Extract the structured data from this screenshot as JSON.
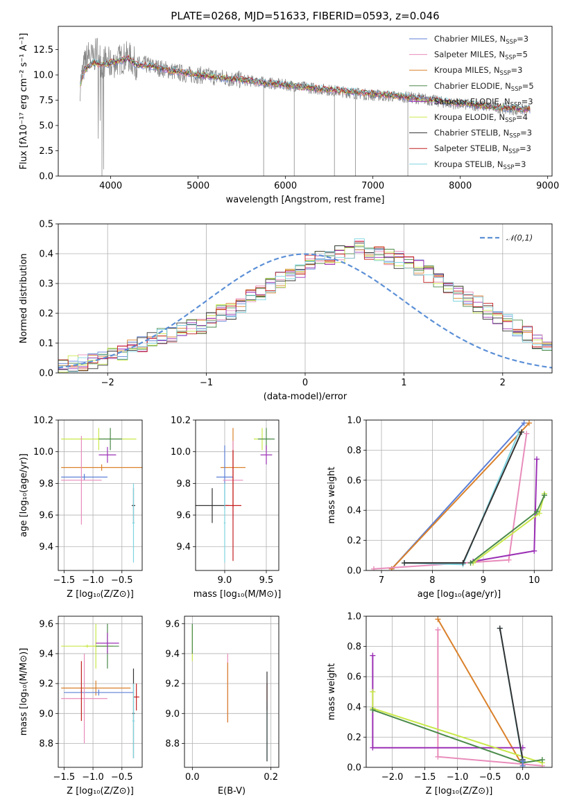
{
  "chart_data": [
    {
      "id": "spectrum",
      "type": "line",
      "title": "PLATE=0268, MJD=51633, FIBERID=0593, z=0.046",
      "xlabel": "wavelength [Angstrom, rest frame]",
      "ylabel": "Flux [fλ10⁻¹⁷ erg cm⁻² s⁻¹ A⁻¹]",
      "xlim": [
        3400,
        9050
      ],
      "ylim": [
        0,
        14.8
      ],
      "xticks": [
        4000,
        5000,
        6000,
        7000,
        8000,
        9000
      ],
      "yticks": [
        0.0,
        2.5,
        5.0,
        7.5,
        10.0,
        12.5
      ],
      "legend_position": "top-right",
      "data_trace": {
        "color": "#808080",
        "x": [
          3650,
          3700,
          3750,
          3800,
          3850,
          3900,
          3950,
          4000,
          4100,
          4200,
          4300,
          4400,
          4500,
          4600,
          4700,
          4800,
          4900,
          5000,
          5200,
          5400,
          5600,
          5800,
          6000,
          6200,
          6400,
          6600,
          6800,
          7000,
          7200,
          7400,
          7600,
          7800,
          8000,
          8200,
          8400,
          8600,
          8800
        ],
        "y": [
          9.0,
          11.0,
          12.0,
          11.5,
          12.5,
          11.0,
          11.5,
          11.0,
          11.5,
          11.8,
          11.0,
          11.0,
          10.8,
          10.6,
          10.4,
          10.2,
          10.0,
          10.0,
          9.8,
          9.6,
          9.4,
          9.2,
          9.0,
          8.8,
          8.6,
          8.4,
          8.2,
          8.0,
          7.9,
          7.8,
          7.6,
          7.3,
          7.1,
          7.0,
          6.8,
          6.6,
          6.5
        ]
      },
      "series": [
        {
          "name": "Chabrier MILES, N",
          "sub": "SSP",
          "suffix": "=3",
          "color": "#5b7fd6"
        },
        {
          "name": "Salpeter MILES, N",
          "sub": "SSP",
          "suffix": "=5",
          "color": "#e88cba"
        },
        {
          "name": "Kroupa MILES, N",
          "sub": "SSP",
          "suffix": "=3",
          "color": "#d9802a"
        },
        {
          "name": "Chabrier ELODIE, N",
          "sub": "SSP",
          "suffix": "=5",
          "color": "#4a8a4a"
        },
        {
          "name": "Salpeter ELODIE, N",
          "sub": "SSP",
          "suffix": "=3",
          "color": "#9b30b5"
        },
        {
          "name": "Kroupa ELODIE, N",
          "sub": "SSP",
          "suffix": "=4",
          "color": "#c8e84a"
        },
        {
          "name": "Chabrier STELIB, N",
          "sub": "SSP",
          "suffix": "=3",
          "color": "#333333"
        },
        {
          "name": "Salpeter STELIB, N",
          "sub": "SSP",
          "suffix": "=3",
          "color": "#c41e1e"
        },
        {
          "name": "Kroupa STELIB, N",
          "sub": "SSP",
          "suffix": "=3",
          "color": "#7fd4e0"
        }
      ],
      "model_trace": {
        "x": [
          3650,
          3700,
          3800,
          3900,
          4000,
          4100,
          4200,
          4300,
          4500,
          4700,
          5000,
          5300,
          5600,
          6000,
          6400,
          6800,
          7200,
          7600,
          8000,
          8400,
          8800
        ],
        "y": [
          9.0,
          10.5,
          11.2,
          11.0,
          11.2,
          11.4,
          11.6,
          11.0,
          10.8,
          10.4,
          10.0,
          9.7,
          9.4,
          9.0,
          8.6,
          8.3,
          8.0,
          7.6,
          7.2,
          6.8,
          6.6
        ]
      }
    },
    {
      "id": "residuals",
      "type": "histogram",
      "xlabel": "(data-model)/error",
      "ylabel": "Normed distribution",
      "xlim": [
        -2.5,
        2.5
      ],
      "ylim": [
        0,
        0.5
      ],
      "xticks": [
        -2,
        -1,
        0,
        1,
        2
      ],
      "yticks": [
        0.0,
        0.1,
        0.2,
        0.3,
        0.4,
        0.5
      ],
      "legend": [
        {
          "name": "𝒩(0,1)",
          "color": "#5b8fd6",
          "style": "dashed"
        }
      ],
      "bin_width": 0.1,
      "bin_start": -2.5,
      "base_values": [
        0.02,
        0.03,
        0.035,
        0.04,
        0.05,
        0.06,
        0.07,
        0.09,
        0.1,
        0.11,
        0.12,
        0.13,
        0.14,
        0.15,
        0.16,
        0.18,
        0.2,
        0.21,
        0.23,
        0.25,
        0.27,
        0.29,
        0.31,
        0.33,
        0.35,
        0.37,
        0.38,
        0.39,
        0.4,
        0.41,
        0.42,
        0.41,
        0.4,
        0.39,
        0.38,
        0.37,
        0.35,
        0.33,
        0.31,
        0.29,
        0.27,
        0.25,
        0.23,
        0.21,
        0.19,
        0.17,
        0.15,
        0.13,
        0.11,
        0.09
      ]
    },
    {
      "id": "age-vs-Z",
      "type": "errorbar",
      "xlabel": "Z [log₁₀(Z/Z⊙)]",
      "ylabel": "age  [log₁₀(age/yr)]",
      "xlim": [
        -1.6,
        -0.15
      ],
      "ylim": [
        9.25,
        10.2
      ],
      "xticks": [
        -1.5,
        -1.0,
        -0.5
      ],
      "yticks": [
        9.4,
        9.6,
        9.8,
        10.0,
        10.2
      ],
      "points": [
        {
          "x": -0.9,
          "y": 10.08,
          "xerr": 0.65,
          "yerr": 0.07,
          "color": "#c8e84a"
        },
        {
          "x": -0.7,
          "y": 10.08,
          "xerr": 0.2,
          "yerr": 0.07,
          "color": "#4a8a4a"
        },
        {
          "x": -0.75,
          "y": 9.98,
          "xerr": 0.15,
          "yerr": 0.05,
          "color": "#9b30b5"
        },
        {
          "x": -0.85,
          "y": 9.9,
          "xerr": 0.7,
          "yerr": 0.02,
          "color": "#d9802a"
        },
        {
          "x": -1.15,
          "y": 9.84,
          "xerr": 0.4,
          "yerr": 0.02,
          "color": "#5b7fd6"
        },
        {
          "x": -1.2,
          "y": 9.82,
          "xerr": 0.35,
          "yerr": 0.28,
          "color": "#e88cba"
        },
        {
          "x": -0.3,
          "y": 9.66,
          "xerr": 0.03,
          "yerr": 0.11,
          "color": "#333333"
        },
        {
          "x": -0.3,
          "y": 9.55,
          "xerr": 0.02,
          "yerr": 0.25,
          "color": "#7fd4e0"
        }
      ]
    },
    {
      "id": "age-vs-mass",
      "type": "errorbar",
      "xlabel": "mass [log₁₀(M/M⊙)]",
      "ylabel": "",
      "xlim": [
        8.65,
        9.65
      ],
      "ylim": [
        9.25,
        10.2
      ],
      "xticks": [
        9.0,
        9.5
      ],
      "yticks": [
        9.4,
        9.6,
        9.8,
        10.0,
        10.2
      ],
      "points": [
        {
          "x": 9.45,
          "y": 10.08,
          "xerr": 0.1,
          "yerr": 0.07,
          "color": "#c8e84a"
        },
        {
          "x": 9.5,
          "y": 10.08,
          "xerr": 0.1,
          "yerr": 0.07,
          "color": "#4a8a4a"
        },
        {
          "x": 9.5,
          "y": 9.98,
          "xerr": 0.07,
          "yerr": 0.06,
          "color": "#9b30b5"
        },
        {
          "x": 9.1,
          "y": 9.9,
          "xerr": 0.15,
          "yerr": 0.25,
          "color": "#d9802a"
        },
        {
          "x": 9.0,
          "y": 9.84,
          "xerr": 0.1,
          "yerr": 0.2,
          "color": "#5b7fd6"
        },
        {
          "x": 9.1,
          "y": 9.82,
          "xerr": 0.12,
          "yerr": 0.25,
          "color": "#e88cba"
        },
        {
          "x": 8.85,
          "y": 9.66,
          "xerr": 0.2,
          "yerr": 0.11,
          "color": "#333333"
        },
        {
          "x": 9.1,
          "y": 9.66,
          "xerr": 0.1,
          "yerr": 0.35,
          "color": "#c41e1e"
        },
        {
          "x": 9.0,
          "y": 9.55,
          "xerr": 0.01,
          "yerr": 0.25,
          "color": "#7fd4e0"
        }
      ]
    },
    {
      "id": "weight-vs-age",
      "type": "line",
      "xlabel": "age  [log₁₀(age/yr)]",
      "ylabel": "mass weight",
      "xlim": [
        6.7,
        10.35
      ],
      "ylim": [
        0,
        1.0
      ],
      "xticks": [
        7,
        8,
        9,
        10
      ],
      "yticks": [
        0.0,
        0.2,
        0.4,
        0.6,
        0.8,
        1.0
      ],
      "lines": [
        {
          "color": "#5b7fd6",
          "x": [
            7.2,
            9.8
          ],
          "y": [
            0.01,
            0.98
          ]
        },
        {
          "color": "#d9802a",
          "x": [
            7.2,
            9.9
          ],
          "y": [
            0.01,
            0.98
          ]
        },
        {
          "color": "#e88cba",
          "x": [
            6.85,
            9.5,
            9.85
          ],
          "y": [
            0.01,
            0.07,
            0.91
          ]
        },
        {
          "color": "#9b30b5",
          "x": [
            8.8,
            10.0,
            10.05
          ],
          "y": [
            0.06,
            0.13,
            0.74
          ]
        },
        {
          "color": "#c8e84a",
          "x": [
            8.8,
            10.1,
            10.2
          ],
          "y": [
            0.05,
            0.38,
            0.51
          ]
        },
        {
          "color": "#4a8a4a",
          "x": [
            8.75,
            10.05,
            10.2
          ],
          "y": [
            0.05,
            0.39,
            0.5
          ]
        },
        {
          "color": "#7fd4e0",
          "x": [
            7.45,
            8.6,
            9.7
          ],
          "y": [
            0.05,
            0.04,
            0.92
          ]
        },
        {
          "color": "#333333",
          "x": [
            7.45,
            8.6,
            9.75
          ],
          "y": [
            0.05,
            0.05,
            0.92
          ]
        }
      ]
    },
    {
      "id": "mass-vs-Z",
      "type": "errorbar",
      "xlabel": "Z [log₁₀(Z/Z⊙)]",
      "ylabel": "mass [log₁₀(M/M⊙)]",
      "xlim": [
        -1.6,
        -0.15
      ],
      "ylim": [
        8.64,
        9.65
      ],
      "xticks": [
        -1.5,
        -1.0,
        -0.5
      ],
      "yticks": [
        8.8,
        9.0,
        9.2,
        9.4,
        9.6
      ],
      "points": [
        {
          "x": -1.1,
          "y": 9.45,
          "xerr": 0.45,
          "yerr": 0.01,
          "color": "#c8e84a"
        },
        {
          "x": -0.95,
          "y": 9.45,
          "xerr": 0.2,
          "yerr": 0.15,
          "color": "#c8e84a"
        },
        {
          "x": -0.75,
          "y": 9.45,
          "xerr": 0.2,
          "yerr": 0.15,
          "color": "#4a8a4a"
        },
        {
          "x": -0.75,
          "y": 9.47,
          "xerr": 0.2,
          "yerr": 0.07,
          "color": "#9b30b5"
        },
        {
          "x": -0.95,
          "y": 9.17,
          "xerr": 0.6,
          "yerr": 0.05,
          "color": "#d9802a"
        },
        {
          "x": -0.9,
          "y": 9.14,
          "xerr": 0.6,
          "yerr": 0.02,
          "color": "#5b7fd6"
        },
        {
          "x": -1.15,
          "y": 9.1,
          "xerr": 0.4,
          "yerr": 0.3,
          "color": "#e88cba"
        },
        {
          "x": -1.2,
          "y": 9.15,
          "xerr": 0.01,
          "yerr": 0.2,
          "color": "#c41e1e"
        },
        {
          "x": -0.25,
          "y": 9.11,
          "xerr": 0.05,
          "yerr": 0.09,
          "color": "#c41e1e"
        },
        {
          "x": -0.3,
          "y": 9.0,
          "xerr": 0.02,
          "yerr": 0.3,
          "color": "#333333"
        },
        {
          "x": -0.3,
          "y": 8.95,
          "xerr": 0.02,
          "yerr": 0.25,
          "color": "#7fd4e0"
        }
      ]
    },
    {
      "id": "mass-vs-EBV",
      "type": "errorbar",
      "xlabel": "E(B-V)",
      "ylabel": "",
      "xlim": [
        -0.02,
        0.22
      ],
      "ylim": [
        8.64,
        9.65
      ],
      "xticks": [
        0.0,
        0.2
      ],
      "yticks": [
        8.8,
        9.0,
        9.2,
        9.4,
        9.6
      ],
      "points": [
        {
          "x": 0.0,
          "y": 9.47,
          "xerr": 0.0,
          "yerr": 0.12,
          "color": "#c8e84a"
        },
        {
          "x": 0.0,
          "y": 9.5,
          "xerr": 0.0,
          "yerr": 0.1,
          "color": "#4a8a4a"
        },
        {
          "x": 0.09,
          "y": 9.17,
          "xerr": 0.0,
          "yerr": 0.23,
          "color": "#e88cba"
        },
        {
          "x": 0.09,
          "y": 9.14,
          "xerr": 0.0,
          "yerr": 0.2,
          "color": "#d9802a"
        },
        {
          "x": 0.19,
          "y": 9.11,
          "xerr": 0.0,
          "yerr": 0.09,
          "color": "#c41e1e"
        },
        {
          "x": 0.19,
          "y": 8.88,
          "xerr": 0.0,
          "yerr": 0.2,
          "color": "#7fd4e0"
        },
        {
          "x": 0.19,
          "y": 8.98,
          "xerr": 0.0,
          "yerr": 0.3,
          "color": "#333333"
        }
      ]
    },
    {
      "id": "weight-vs-Z",
      "type": "line",
      "xlabel": "Z [log₁₀(Z/Z⊙)]",
      "ylabel": "mass weight",
      "xlim": [
        -2.4,
        0.45
      ],
      "ylim": [
        0,
        1.0
      ],
      "xticks": [
        -2.0,
        -1.5,
        -1.0,
        -0.5,
        0.0
      ],
      "yticks": [
        0.0,
        0.2,
        0.4,
        0.6,
        0.8,
        1.0
      ],
      "lines": [
        {
          "color": "#d9802a",
          "x": [
            -1.3,
            0.0
          ],
          "y": [
            0.98,
            0.01
          ]
        },
        {
          "color": "#e88cba",
          "x": [
            -1.3,
            -1.3,
            0.3
          ],
          "y": [
            0.91,
            0.07,
            0.01
          ]
        },
        {
          "color": "#9b30b5",
          "x": [
            -2.3,
            -2.3,
            0.0
          ],
          "y": [
            0.74,
            0.13,
            0.13
          ]
        },
        {
          "color": "#c8e84a",
          "x": [
            -2.3,
            -2.3,
            0.3
          ],
          "y": [
            0.5,
            0.39,
            0.03
          ]
        },
        {
          "color": "#4a8a4a",
          "x": [
            -2.3,
            0.0,
            0.3
          ],
          "y": [
            0.38,
            0.03,
            0.05
          ]
        },
        {
          "color": "#7fd4e0",
          "x": [
            -0.35,
            0.0,
            0.0
          ],
          "y": [
            0.92,
            0.04,
            0.05
          ]
        },
        {
          "color": "#333333",
          "x": [
            -0.35,
            0.0,
            0.0
          ],
          "y": [
            0.92,
            0.05,
            0.04
          ]
        },
        {
          "color": "#5b7fd6",
          "x": [
            0.0,
            0.0
          ],
          "y": [
            0.01,
            0.04
          ]
        }
      ]
    }
  ]
}
